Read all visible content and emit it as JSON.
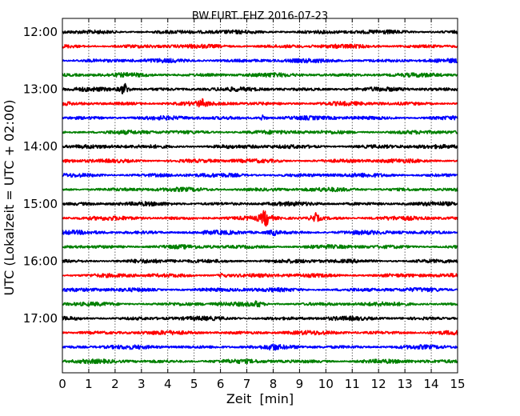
{
  "chart_data": {
    "type": "line",
    "title": "BW.FURT..EHZ 2016-07-23",
    "xlabel": "Zeit  [min]",
    "ylabel": "UTC (Lokalzeit = UTC + 02:00)",
    "xlim": [
      0,
      15
    ],
    "x_ticks": [
      "0",
      "1",
      "2",
      "3",
      "4",
      "5",
      "6",
      "7",
      "8",
      "9",
      "10",
      "11",
      "12",
      "13",
      "14",
      "15"
    ],
    "y_ticks": [
      {
        "label": "12:00",
        "trace": 0
      },
      {
        "label": "13:00",
        "trace": 4
      },
      {
        "label": "14:00",
        "trace": 8
      },
      {
        "label": "15:00",
        "trace": 12
      },
      {
        "label": "16:00",
        "trace": 16
      },
      {
        "label": "17:00",
        "trace": 20
      }
    ],
    "traces_per_hour": 4,
    "minutes_per_trace": 15,
    "trace_start_times": [
      "12:00",
      "12:15",
      "12:30",
      "12:45",
      "13:00",
      "13:15",
      "13:30",
      "13:45",
      "14:00",
      "14:15",
      "14:30",
      "14:45",
      "15:00",
      "15:15",
      "15:30",
      "15:45",
      "16:00",
      "16:15",
      "16:30",
      "16:45",
      "17:00",
      "17:15",
      "17:30",
      "17:45"
    ],
    "trace_colors": [
      "#000000",
      "#ff0000",
      "#0000ff",
      "#008000"
    ],
    "grid": "vertical dotted lines at each minute",
    "events": [
      {
        "trace": 4,
        "minute": 2.35,
        "amp": 0.9
      },
      {
        "trace": 5,
        "minute": 5.3,
        "amp": 0.4
      },
      {
        "trace": 6,
        "minute": 7.6,
        "amp": 0.35
      },
      {
        "trace": 13,
        "minute": 7.7,
        "amp": 1.2
      },
      {
        "trace": 13,
        "minute": 9.6,
        "amp": 0.6
      },
      {
        "trace": 14,
        "minute": 8.0,
        "amp": 0.35
      },
      {
        "trace": 17,
        "minute": 6.1,
        "amp": 0.3
      },
      {
        "trace": 19,
        "minute": 7.4,
        "amp": 0.35
      },
      {
        "trace": 22,
        "minute": 8.0,
        "amp": 0.3
      }
    ]
  }
}
